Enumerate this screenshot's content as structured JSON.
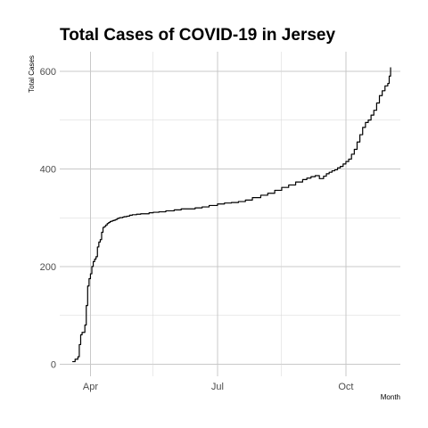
{
  "chart_data": {
    "type": "line",
    "title": "Total Cases of COVID-19 in Jersey",
    "xlabel": "Month",
    "ylabel": "Total Cases",
    "xlim": [
      "2020-03-10",
      "2020-11-09"
    ],
    "ylim": [
      -25,
      640
    ],
    "x_ticks": [
      {
        "date": "2020-04-01",
        "label": "Apr"
      },
      {
        "date": "2020-07-01",
        "label": "Jul"
      },
      {
        "date": "2020-10-01",
        "label": "Oct"
      }
    ],
    "x_minor_ticks": [
      "2020-05-16",
      "2020-08-16"
    ],
    "y_ticks": [
      0,
      200,
      400,
      600
    ],
    "y_minor_ticks": [
      100,
      300,
      500
    ],
    "grid": true,
    "series": [
      {
        "color": "#000000",
        "x": [
          "2020-03-19",
          "2020-03-21",
          "2020-03-23",
          "2020-03-24",
          "2020-03-25",
          "2020-03-26",
          "2020-03-28",
          "2020-03-29",
          "2020-03-30",
          "2020-03-31",
          "2020-04-01",
          "2020-04-02",
          "2020-04-03",
          "2020-04-04",
          "2020-04-05",
          "2020-04-06",
          "2020-04-07",
          "2020-04-08",
          "2020-04-09",
          "2020-04-10",
          "2020-04-11",
          "2020-04-12",
          "2020-04-13",
          "2020-04-14",
          "2020-04-15",
          "2020-04-16",
          "2020-04-17",
          "2020-04-18",
          "2020-04-19",
          "2020-04-20",
          "2020-04-21",
          "2020-04-22",
          "2020-04-23",
          "2020-04-24",
          "2020-04-25",
          "2020-04-27",
          "2020-04-29",
          "2020-05-01",
          "2020-05-04",
          "2020-05-07",
          "2020-05-10",
          "2020-05-13",
          "2020-05-16",
          "2020-05-20",
          "2020-05-25",
          "2020-05-31",
          "2020-06-05",
          "2020-06-10",
          "2020-06-15",
          "2020-06-20",
          "2020-06-25",
          "2020-07-01",
          "2020-07-06",
          "2020-07-11",
          "2020-07-16",
          "2020-07-21",
          "2020-07-26",
          "2020-08-01",
          "2020-08-06",
          "2020-08-11",
          "2020-08-16",
          "2020-08-21",
          "2020-08-26",
          "2020-08-31",
          "2020-09-03",
          "2020-09-06",
          "2020-09-09",
          "2020-09-12",
          "2020-09-15",
          "2020-09-17",
          "2020-09-19",
          "2020-09-21",
          "2020-09-23",
          "2020-09-25",
          "2020-09-27",
          "2020-09-29",
          "2020-10-01",
          "2020-10-03",
          "2020-10-05",
          "2020-10-07",
          "2020-10-09",
          "2020-10-11",
          "2020-10-13",
          "2020-10-15",
          "2020-10-17",
          "2020-10-19",
          "2020-10-21",
          "2020-10-23",
          "2020-10-25",
          "2020-10-27",
          "2020-10-29",
          "2020-10-31",
          "2020-11-01",
          "2020-11-02"
        ],
        "y": [
          5,
          10,
          15,
          40,
          60,
          65,
          80,
          120,
          160,
          175,
          185,
          200,
          210,
          215,
          220,
          240,
          250,
          255,
          270,
          280,
          282,
          285,
          288,
          290,
          292,
          293,
          294,
          295,
          296,
          298,
          299,
          300,
          300,
          301,
          302,
          303,
          305,
          306,
          307,
          308,
          308,
          310,
          311,
          312,
          314,
          316,
          318,
          318,
          320,
          322,
          325,
          328,
          330,
          331,
          333,
          336,
          341,
          346,
          350,
          356,
          362,
          367,
          373,
          378,
          381,
          384,
          386,
          380,
          385,
          390,
          393,
          396,
          398,
          402,
          405,
          410,
          415,
          420,
          430,
          440,
          455,
          470,
          485,
          495,
          500,
          510,
          520,
          535,
          550,
          560,
          570,
          575,
          590,
          608
        ]
      }
    ]
  }
}
